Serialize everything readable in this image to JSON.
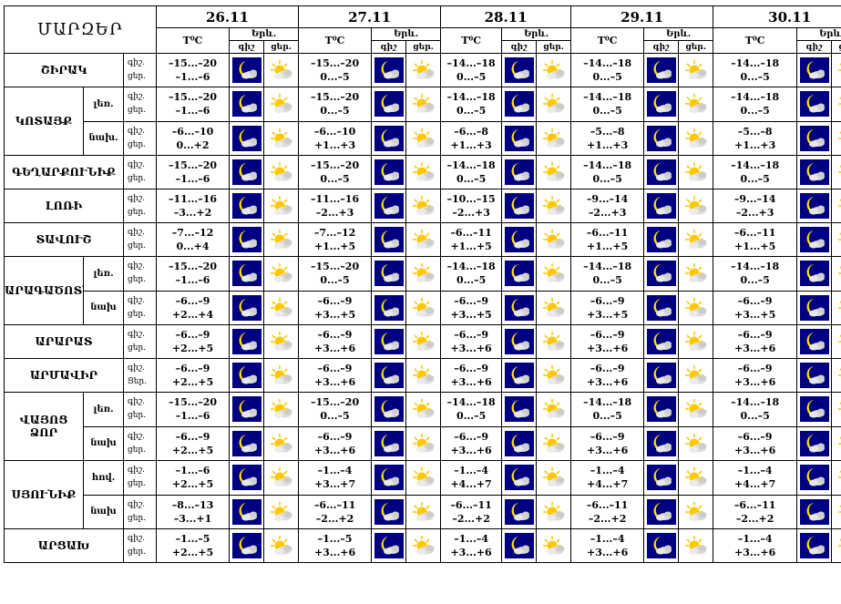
{
  "title": "ՄԱՐԶԵՐ",
  "dates": [
    "26.11",
    "27.11",
    "28.11",
    "29.11",
    "30.11"
  ],
  "col_labels": {
    "temp": "T⁰C",
    "phenomena": "Երև.",
    "night": "գիշ",
    "day": "ցեր."
  },
  "period_labels": {
    "night": "գիշ.",
    "day": "ցեր.",
    "day_alt": "Ցեր."
  },
  "icons": {
    "night": "moon-cloud-icon",
    "day": "sun-cloud-icon"
  },
  "colors": {
    "night_bg": "#000080",
    "moon": "#ffe000",
    "sun": "#ffc800",
    "cloud": "#d8d8d8"
  },
  "regions": [
    {
      "name": "ՇԻՐԱԿ",
      "sub": "",
      "rows": [
        {
          "night": [
            "–15...–20",
            "–15...–20",
            "–14...–18",
            "–14...–18",
            "–14...–18"
          ],
          "day": [
            "–1...–6",
            "0...–5",
            "0...–5",
            "0...–5",
            "0...–5"
          ]
        }
      ]
    },
    {
      "name": "ԿՈՏԱՅՔ",
      "sub": "",
      "rows": [
        {
          "label": "լեռ.",
          "night": [
            "–15...–20",
            "–15...–20",
            "–14...–18",
            "–14...–18",
            "–14...–18"
          ],
          "day": [
            "–1...–6",
            "0...–5",
            "0...–5",
            "0...–5",
            "0...–5"
          ]
        },
        {
          "label": "նախ.",
          "night": [
            "–6...–10",
            "–6...–10",
            "–6...–8",
            "–5...–8",
            "–5...–8"
          ],
          "day": [
            "0...+2",
            "+1...+3",
            "+1...+3",
            "+1...+3",
            "+1...+3"
          ]
        }
      ]
    },
    {
      "name": "ԳԵՂԱՐՔՈՒՆԻՔ",
      "sub": "",
      "rows": [
        {
          "night": [
            "–15...–20",
            "–15...–20",
            "–14...–18",
            "–14...–18",
            "–14...–18"
          ],
          "day": [
            "–1...–6",
            "0...–5",
            "0...–5",
            "0...–5",
            "0...–5"
          ]
        }
      ]
    },
    {
      "name": "ԼՈՌԻ",
      "sub": "",
      "rows": [
        {
          "night": [
            "–11...–16",
            "–11...–16",
            "–10...–15",
            "–9...–14",
            "–9...–14"
          ],
          "day": [
            "–3...+2",
            "–2...+3",
            "–2...+3",
            "–2...+3",
            "–2...+3"
          ]
        }
      ]
    },
    {
      "name": "ՏԱՎՈՒՇ",
      "sub": "",
      "rows": [
        {
          "night": [
            "–7...–12",
            "–7...–12",
            "–6...–11",
            "–6...–11",
            "–6...–11"
          ],
          "day": [
            "0...+4",
            "+1...+5",
            "+1...+5",
            "+1...+5",
            "+1...+5"
          ]
        }
      ]
    },
    {
      "name": "ԱՐԱԳԱԾՈՏՆ",
      "sub": "",
      "rows": [
        {
          "label": "լեռ.",
          "night": [
            "–15...–20",
            "–15...–20",
            "–14...–18",
            "–14...–18",
            "–14...–18"
          ],
          "day": [
            "–1...–6",
            "0...–5",
            "0...–5",
            "0...–5",
            "0...–5"
          ]
        },
        {
          "label": "նախ",
          "night": [
            "–6...–9",
            "–6...–9",
            "–6...–9",
            "–6...–9",
            "–6...–9"
          ],
          "day": [
            "+2...+4",
            "+3...+5",
            "+3...+5",
            "+3...+5",
            "+3...+5"
          ]
        }
      ]
    },
    {
      "name": "ԱՐԱՐԱՏ",
      "sub": "",
      "rows": [
        {
          "night": [
            "–6...–9",
            "–6...–9",
            "–6...–9",
            "–6...–9",
            "–6...–9"
          ],
          "day": [
            "+2...+5",
            "+3...+6",
            "+3...+6",
            "+3...+6",
            "+3...+6"
          ]
        }
      ]
    },
    {
      "name": "ԱՐՄԱՎԻՐ",
      "sub": "",
      "rows": [
        {
          "day_label": "Ցեր.",
          "night": [
            "–6...–9",
            "–6...–9",
            "–6...–9",
            "–6...–9",
            "–6...–9"
          ],
          "day": [
            "+2...+5",
            "+3...+6",
            "+3...+6",
            "+3...+6",
            "+3...+6"
          ]
        }
      ]
    },
    {
      "name": "ՎԱՅՈՑ",
      "sub": "ՁՈՐ",
      "rows": [
        {
          "label": "լեռ.",
          "night": [
            "–15...–20",
            "–15...–20",
            "–14...–18",
            "–14...–18",
            "–14...–18"
          ],
          "day": [
            "–1...–6",
            "0...–5",
            "0...–5",
            "0...–5",
            "0...–5"
          ]
        },
        {
          "label": "նախ",
          "night": [
            "–6...–9",
            "–6...–9",
            "–6...–9",
            "–6...–9",
            "–6...–9"
          ],
          "day": [
            "+2...+5",
            "+3...+6",
            "+3...+6",
            "+3...+6",
            "+3...+6"
          ]
        }
      ]
    },
    {
      "name": "ՍՅՈՒՆԻՔ",
      "sub": "",
      "rows": [
        {
          "label": "hով.",
          "night": [
            "–1...–6",
            "–1...–4",
            "–1...–4",
            "–1...–4",
            "–1...–4"
          ],
          "day": [
            "+2...+5",
            "+3...+7",
            "+4...+7",
            "+4...+7",
            "+4...+7"
          ]
        },
        {
          "label": "նախ",
          "night": [
            "–8...–13",
            "–6...–11",
            "–6...–11",
            "–6...–11",
            "–6...–11"
          ],
          "day": [
            "–3...+1",
            "–2...+2",
            "–2...+2",
            "–2...+2",
            "–2...+2"
          ]
        }
      ]
    },
    {
      "name": "ԱՐՑԱԽ",
      "sub": "",
      "rows": [
        {
          "night": [
            "–1...–5",
            "–1...–5",
            "–1...–4",
            "–1...–4",
            "–1...–4"
          ],
          "day": [
            "+2...+5",
            "+3...+6",
            "+3...+6",
            "+3...+6",
            "+3...+6"
          ]
        }
      ]
    }
  ]
}
